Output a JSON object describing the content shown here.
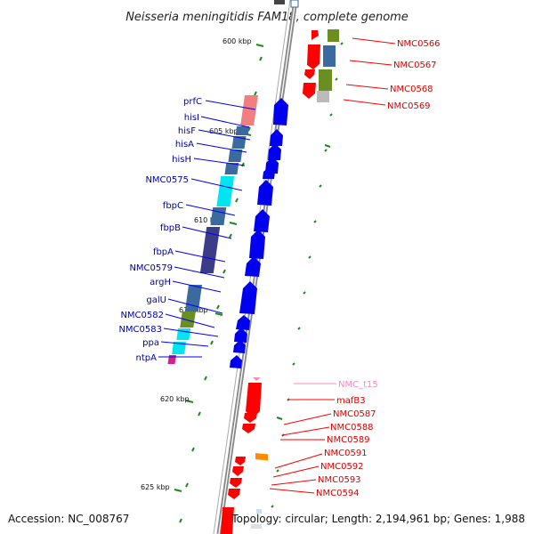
{
  "title": "Neisseria meningitidis FAM18, complete genome",
  "footer": {
    "accession": "Accession: NC_008767",
    "stats": "Topology: circular; Length: 2,194,961 bp; Genes: 1,988"
  },
  "scale": [
    {
      "label": "600 kbp"
    },
    {
      "label": "605 kbp"
    },
    {
      "label": "610 kbp"
    },
    {
      "label": "615 kbp"
    },
    {
      "label": "620 kbp"
    },
    {
      "label": "625 kbp"
    }
  ],
  "colors": {
    "forward_strand": "#0000ee",
    "reverse_strand": "#ff0000",
    "trna": "#ff88bb",
    "leftLabel": "#0000aa",
    "rightLabel": "#dd0000",
    "backbone": "#888888",
    "tick": "#1a8a1a"
  },
  "leftGenes": [
    {
      "name": "prfC"
    },
    {
      "name": "hisI"
    },
    {
      "name": "hisF"
    },
    {
      "name": "hisA"
    },
    {
      "name": "hisH"
    },
    {
      "name": "NMC0575"
    },
    {
      "name": "fbpC"
    },
    {
      "name": "fbpB"
    },
    {
      "name": "fbpA"
    },
    {
      "name": "NMC0579"
    },
    {
      "name": "argH"
    },
    {
      "name": "galU"
    },
    {
      "name": "NMC0582"
    },
    {
      "name": "NMC0583"
    },
    {
      "name": "ppa"
    },
    {
      "name": "ntpA"
    }
  ],
  "rightGenes": [
    {
      "name": "NMC0566"
    },
    {
      "name": "NMC0567"
    },
    {
      "name": "NMC0568"
    },
    {
      "name": "NMC0569"
    },
    {
      "name": "NMC_t15",
      "type": "trna"
    },
    {
      "name": "mafB3"
    },
    {
      "name": "NMC0587"
    },
    {
      "name": "NMC0588"
    },
    {
      "name": "NMC0589"
    },
    {
      "name": "NMC0591"
    },
    {
      "name": "NMC0592"
    },
    {
      "name": "NMC0593"
    },
    {
      "name": "NMC0594"
    }
  ]
}
